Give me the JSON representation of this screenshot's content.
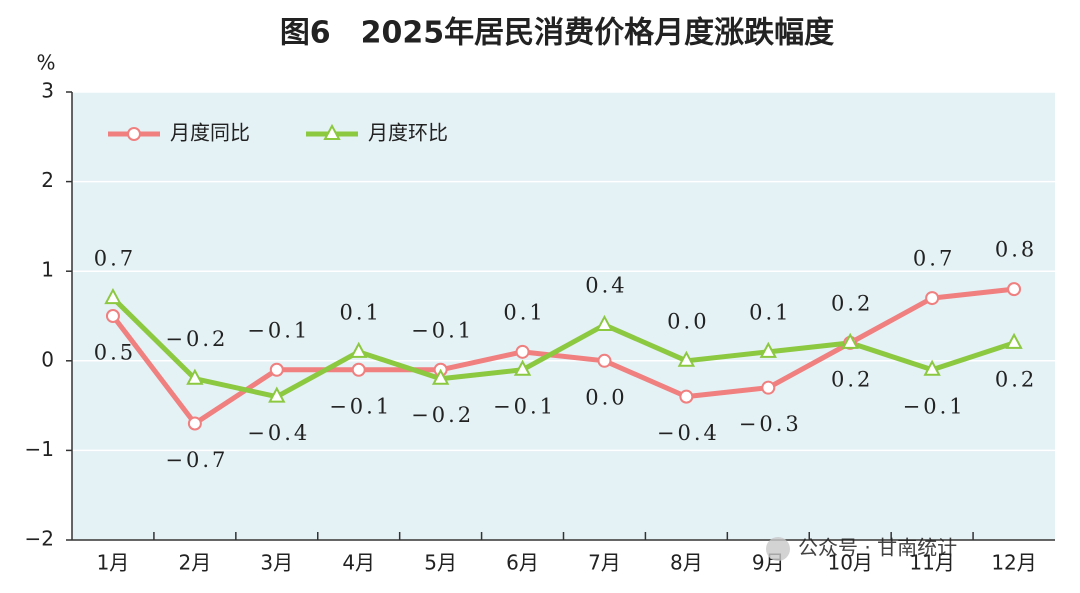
{
  "chart_data": {
    "type": "line",
    "title": "图6　2025年居民消费价格月度涨跌幅度",
    "y_unit": "%",
    "categories": [
      "1月",
      "2月",
      "3月",
      "4月",
      "5月",
      "6月",
      "7月",
      "8月",
      "9月",
      "10月",
      "11月",
      "12月"
    ],
    "series": [
      {
        "name": "月度同比",
        "color": "#f07f7f",
        "marker": "circle",
        "values": [
          0.5,
          -0.7,
          -0.1,
          -0.1,
          -0.1,
          0.1,
          0.0,
          -0.4,
          -0.3,
          0.2,
          0.7,
          0.8
        ],
        "value_labels": [
          "0.5",
          "−0.7",
          "−0.1",
          "−0.1",
          "−0.1",
          "0.1",
          "0.0",
          "−0.4",
          "−0.3",
          "0.2",
          "0.7",
          "0.8"
        ]
      },
      {
        "name": "月度环比",
        "color": "#8cc840",
        "marker": "triangle",
        "values": [
          0.7,
          -0.2,
          -0.4,
          0.1,
          -0.2,
          -0.1,
          0.4,
          0.0,
          0.1,
          0.2,
          -0.1,
          0.2
        ],
        "value_labels": [
          "0.7",
          "−0.2",
          "−0.4",
          "0.1",
          "−0.2",
          "−0.1",
          "0.4",
          "0.0",
          "0.1",
          "0.2",
          "−0.1",
          "0.2"
        ]
      }
    ],
    "ylim": [
      -2,
      3
    ],
    "yticks": [
      {
        "value": -2,
        "label": "−2"
      },
      {
        "value": -1,
        "label": "−1"
      },
      0,
      1,
      2,
      3
    ],
    "grid": true,
    "legend": "upper left",
    "background": "#e4f1f5",
    "watermark": "公众号 · 甘南统计"
  }
}
